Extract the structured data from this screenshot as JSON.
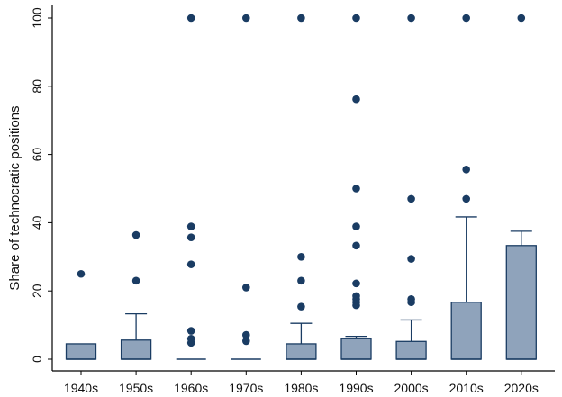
{
  "colors": {
    "box_fill": "#8fa3bb",
    "box_stroke": "#1a3c63",
    "outlier": "#1a3c63",
    "axis": "#000000",
    "background": "#ffffff"
  },
  "chart_data": {
    "type": "box",
    "title": "",
    "xlabel": "",
    "ylabel": "Share of technocratic positions",
    "ylim": [
      0,
      100
    ],
    "yticks": [
      0,
      20,
      40,
      60,
      80,
      100
    ],
    "grid": false,
    "legend": "none",
    "categories": [
      "1940s",
      "1950s",
      "1960s",
      "1970s",
      "1980s",
      "1990s",
      "2000s",
      "2010s",
      "2020s"
    ],
    "boxes": [
      {
        "category": "1940s",
        "min": 0,
        "q1": 0,
        "median": 0,
        "q3": 4.5,
        "max": 4.5,
        "outliers": [
          25
        ]
      },
      {
        "category": "1950s",
        "min": 0,
        "q1": 0,
        "median": 0,
        "q3": 5.6,
        "max": 13.3,
        "outliers": [
          23,
          36.4
        ]
      },
      {
        "category": "1960s",
        "min": 0,
        "q1": 0,
        "median": 0,
        "q3": 0,
        "max": 0,
        "outliers": [
          4.8,
          6,
          8.3,
          27.8,
          35.7,
          38.9,
          100
        ]
      },
      {
        "category": "1970s",
        "min": 0,
        "q1": 0,
        "median": 0,
        "q3": 0,
        "max": 0,
        "outliers": [
          5.3,
          7.1,
          21,
          100
        ]
      },
      {
        "category": "1980s",
        "min": 0,
        "q1": 0,
        "median": 0,
        "q3": 4.5,
        "max": 10.5,
        "outliers": [
          15.4,
          23,
          30,
          100
        ]
      },
      {
        "category": "1990s",
        "min": 0,
        "q1": 0,
        "median": 0,
        "q3": 6,
        "max": 6.7,
        "outliers": [
          15.8,
          16.7,
          17.6,
          18.5,
          22.2,
          33.3,
          38.9,
          50,
          76.2,
          100
        ]
      },
      {
        "category": "2000s",
        "min": 0,
        "q1": 0,
        "median": 0,
        "q3": 5.2,
        "max": 11.5,
        "outliers": [
          16.7,
          17.6,
          29.4,
          47,
          100
        ]
      },
      {
        "category": "2010s",
        "min": 0,
        "q1": 0,
        "median": 0,
        "q3": 16.7,
        "max": 41.7,
        "outliers": [
          47,
          55.6,
          100
        ]
      },
      {
        "category": "2020s",
        "min": 0,
        "q1": 0,
        "median": 0,
        "q3": 33.3,
        "max": 37.5,
        "outliers": [
          100
        ]
      }
    ]
  }
}
